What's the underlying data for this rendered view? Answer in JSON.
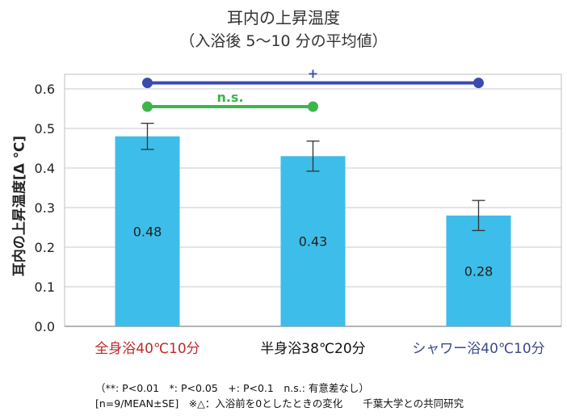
{
  "title_line1": "耳内の上昇温度",
  "title_line2": "（入浴後 5～10 分の平均値）",
  "notes": {
    "line1": "（**: P<0.01　*: P<0.05　+: P<0.1　n.s.: 有意差なし）",
    "line2": "[n=9/MEAN±SE]　※△：入浴前を0としたときの変化　　千葉大学との共同研究"
  },
  "chart_data": {
    "type": "bar",
    "ylabel": "耳内の上昇温度[Δ ℃]",
    "xlabel": "",
    "ylim": [
      0,
      0.6
    ],
    "yticks": [
      0.0,
      0.1,
      0.2,
      0.3,
      0.4,
      0.5,
      0.6
    ],
    "ytick_labels": [
      "0.0",
      "0.1",
      "0.2",
      "0.3",
      "0.4",
      "0.5",
      "0.6"
    ],
    "grid": true,
    "categories": [
      "全身浴40℃10分",
      "半身浴38℃20分",
      "シャワー浴40℃10分"
    ],
    "category_colors": [
      "#c0282a",
      "#111111",
      "#3b4a8c"
    ],
    "values": [
      0.48,
      0.43,
      0.28
    ],
    "value_labels": [
      "0.48",
      "0.43",
      "0.28"
    ],
    "error": [
      0.033,
      0.038,
      0.038
    ],
    "bar_color": "#3dbde9",
    "significance": [
      {
        "from": 0,
        "to": 1,
        "y": 0.555,
        "label": "n.s.",
        "color": "#3db54a"
      },
      {
        "from": 0,
        "to": 2,
        "y": 0.615,
        "label": "+",
        "color": "#3a4bb0"
      }
    ]
  }
}
